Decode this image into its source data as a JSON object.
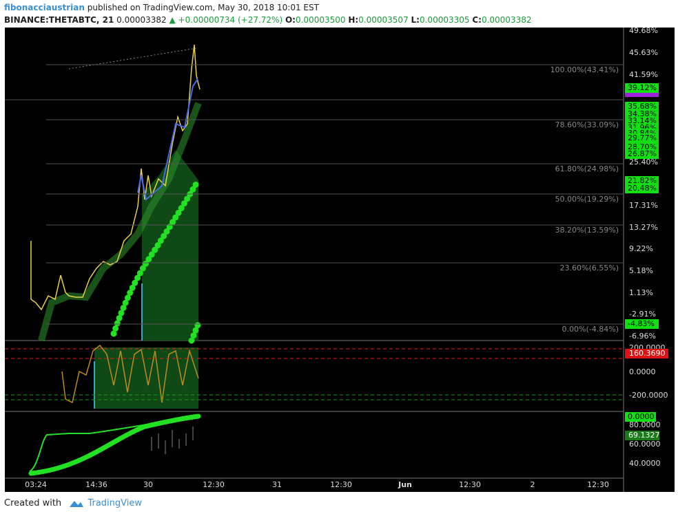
{
  "header": {
    "author": "fibonacciaustrian",
    "published": "published on TradingView.com, May 30, 2018 10:01 EST",
    "symbol": "BINANCE:THETABTC, 21",
    "price": "0.00003382",
    "change": "▲ +0.00000734 (+27.72%)",
    "open_label": "O:",
    "open": "0.00003500",
    "high_label": "H:",
    "high": "0.00003507",
    "low_label": "L:",
    "low": "0.00003305",
    "close_label": "C:",
    "close": "0.00003382"
  },
  "fib_levels": [
    "100.00%(43.41%)",
    "78.60%(33.09%)",
    "61.80%(24.98%)",
    "50.00%(19.29%)",
    "38.20%(13.59%)",
    "23.60%(6.55%)",
    "0.00%(-4.84%)"
  ],
  "price_axis": [
    "49.68%",
    "45.63%",
    "41.59%",
    "25.40%",
    "17.31%",
    "13.27%",
    "9.22%",
    "5.18%",
    "1.13%",
    "-2.91%",
    "-6.96%"
  ],
  "price_badges": [
    "39.12%",
    "35.68%",
    "34.38%",
    "33.14%",
    "31.96%",
    "30.84%",
    "29.77%",
    "28.70%",
    "26.87%",
    "21.82%",
    "20.48%",
    "-4.83%"
  ],
  "osc_axis": [
    "200.0000",
    "0.0000",
    "-200.0000"
  ],
  "osc_badge": "160.3690",
  "bottom_axis": [
    "80.0000",
    "60.0000",
    "40.0000"
  ],
  "bottom_badges": [
    "0.0000",
    "69.1327"
  ],
  "time_axis": [
    "03:24",
    "14:36",
    "30",
    "12:30",
    "31",
    "12:30",
    "Jun",
    "12:30",
    "2",
    "12:30"
  ],
  "footer": {
    "created_with": "Created with",
    "brand": "TradingView"
  }
}
